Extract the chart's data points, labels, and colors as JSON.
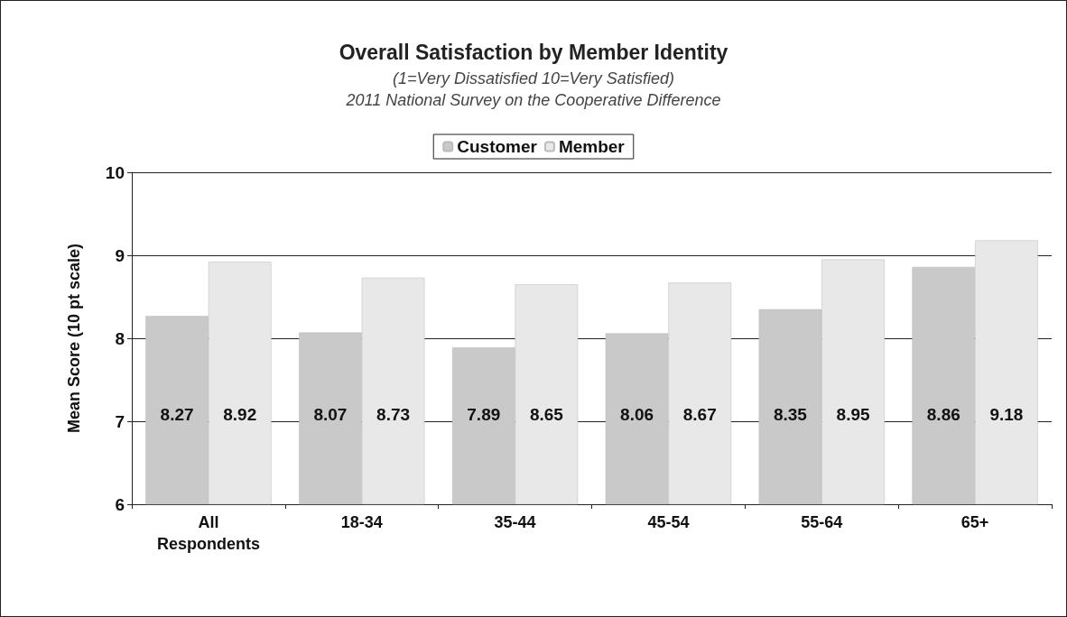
{
  "chart_data": {
    "type": "bar",
    "title": "Overall Satisfaction by Member Identity",
    "subtitle": "(1=Very Dissatisfied 10=Very Satisfied)\n2011 National Survey on the Cooperative Difference",
    "ylabel": "Mean Score (10 pt scale)",
    "categories": [
      "All\nRespondents",
      "18-34",
      "35-44",
      "45-54",
      "55-64",
      "65+"
    ],
    "series": [
      {
        "name": "Customer",
        "color": "#c9c9c9",
        "values": [
          8.27,
          8.07,
          7.89,
          8.06,
          8.35,
          8.86
        ]
      },
      {
        "name": "Member",
        "color": "#e8e8e8",
        "values": [
          8.92,
          8.73,
          8.65,
          8.67,
          8.95,
          9.18
        ]
      }
    ],
    "ylim": [
      6,
      10
    ],
    "yticks": [
      6,
      7,
      8,
      9,
      10
    ],
    "grid": "y",
    "legend": "top",
    "data_labels": true
  }
}
